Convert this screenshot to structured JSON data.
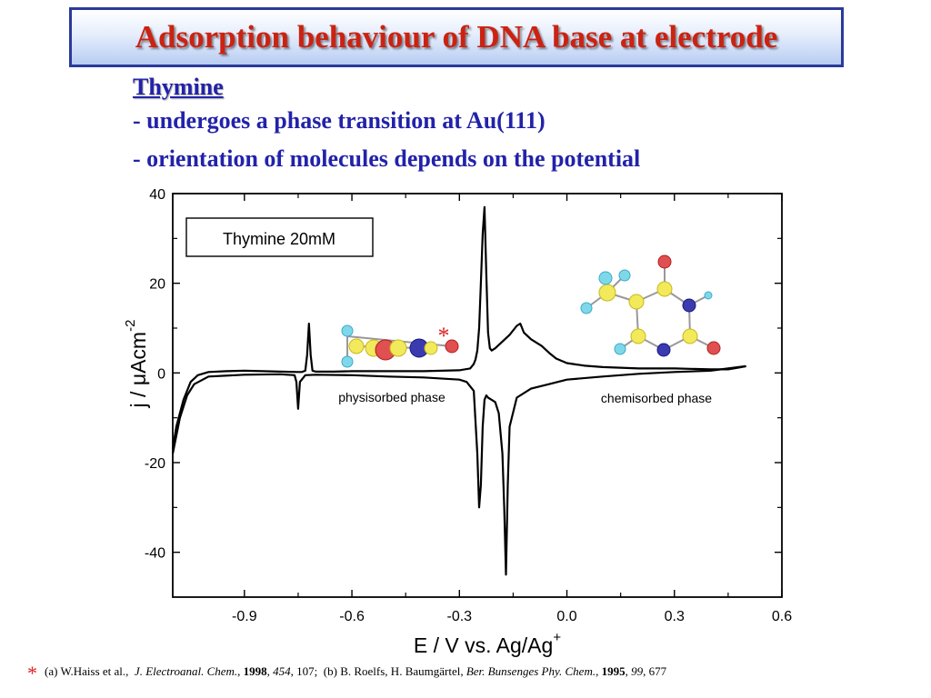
{
  "slide": {
    "title": "Adsorption behaviour of DNA base at electrode",
    "subheading": "Thymine",
    "bullets": [
      "- undergoes  a phase transition at Au(111)",
      "- orientation of molecules depends on the potential"
    ]
  },
  "chart_data": {
    "type": "line",
    "xlabel": "E / V vs. Ag/Ag",
    "xlabel_sup": "+",
    "ylabel": "j / μAcm",
    "ylabel_sup": "-2",
    "xlim": [
      -1.1,
      0.6
    ],
    "ylim": [
      -50,
      40
    ],
    "xticks": [
      "-0.9",
      "-0.6",
      "-0.3",
      "0.0",
      "0.3",
      "0.6"
    ],
    "yticks": [
      "40",
      "20",
      "0",
      "-20",
      "-40"
    ],
    "grid": false,
    "legend_box": "Thymine 20mM",
    "annotations": {
      "physisorbed": "physisorbed phase",
      "chemisorbed": "chemisorbed phase",
      "asterisk": "*"
    },
    "asterisk_color": "#dd2222",
    "series": [
      {
        "x": [
          -1.1,
          -1.09,
          -1.07,
          -1.05,
          -1.03,
          -1.0,
          -0.95,
          -0.9,
          -0.85,
          -0.8,
          -0.75,
          -0.74,
          -0.73,
          -0.725,
          -0.72,
          -0.715,
          -0.71,
          -0.7,
          -0.65,
          -0.6,
          -0.5,
          -0.4,
          -0.3,
          -0.27,
          -0.26,
          -0.255,
          -0.25,
          -0.245,
          -0.24,
          -0.235,
          -0.23,
          -0.225,
          -0.22,
          -0.215,
          -0.21,
          -0.2,
          -0.18,
          -0.16,
          -0.14,
          -0.13,
          -0.12,
          -0.1,
          -0.07,
          -0.05,
          -0.03,
          0.0,
          0.05,
          0.1,
          0.2,
          0.3,
          0.4,
          0.45,
          0.48,
          0.5
        ],
        "y": [
          -17,
          -12,
          -6,
          -2,
          -0.5,
          0.2,
          0.4,
          0.5,
          0.4,
          0.3,
          0.2,
          0.2,
          0.5,
          4,
          11,
          4,
          0.5,
          0.3,
          0.3,
          0.4,
          0.4,
          0.4,
          0.6,
          1,
          2,
          3,
          5,
          10,
          20,
          31,
          37,
          22,
          9,
          5.5,
          5,
          5.5,
          7,
          8.5,
          10.5,
          11,
          9,
          7.5,
          6,
          4.5,
          3.2,
          2.2,
          1.6,
          1.3,
          1.0,
          1.0,
          0.8,
          0.8,
          1.2,
          1.5
        ]
      },
      {
        "x": [
          0.5,
          0.45,
          0.4,
          0.3,
          0.2,
          0.1,
          0.0,
          -0.05,
          -0.1,
          -0.14,
          -0.16,
          -0.165,
          -0.17,
          -0.175,
          -0.18,
          -0.19,
          -0.2,
          -0.21,
          -0.22,
          -0.225,
          -0.23,
          -0.235,
          -0.24,
          -0.245,
          -0.25,
          -0.26,
          -0.28,
          -0.3,
          -0.4,
          -0.5,
          -0.6,
          -0.7,
          -0.73,
          -0.745,
          -0.75,
          -0.755,
          -0.76,
          -0.8,
          -0.9,
          -1.0,
          -1.04,
          -1.06,
          -1.08,
          -1.1
        ],
        "y": [
          1.5,
          1.0,
          0.5,
          0.2,
          -0.2,
          -0.8,
          -1.5,
          -2.5,
          -3.5,
          -5.5,
          -12,
          -25,
          -45,
          -30,
          -18,
          -9,
          -6.5,
          -6,
          -5.5,
          -5,
          -6,
          -12,
          -25,
          -30,
          -18,
          -4,
          -2,
          -1.5,
          -1.0,
          -0.8,
          -0.5,
          -0.4,
          -0.5,
          -2,
          -8,
          -2,
          -0.5,
          -0.3,
          -0.4,
          -0.8,
          -2.5,
          -5,
          -10,
          -18
        ]
      }
    ]
  }
}
